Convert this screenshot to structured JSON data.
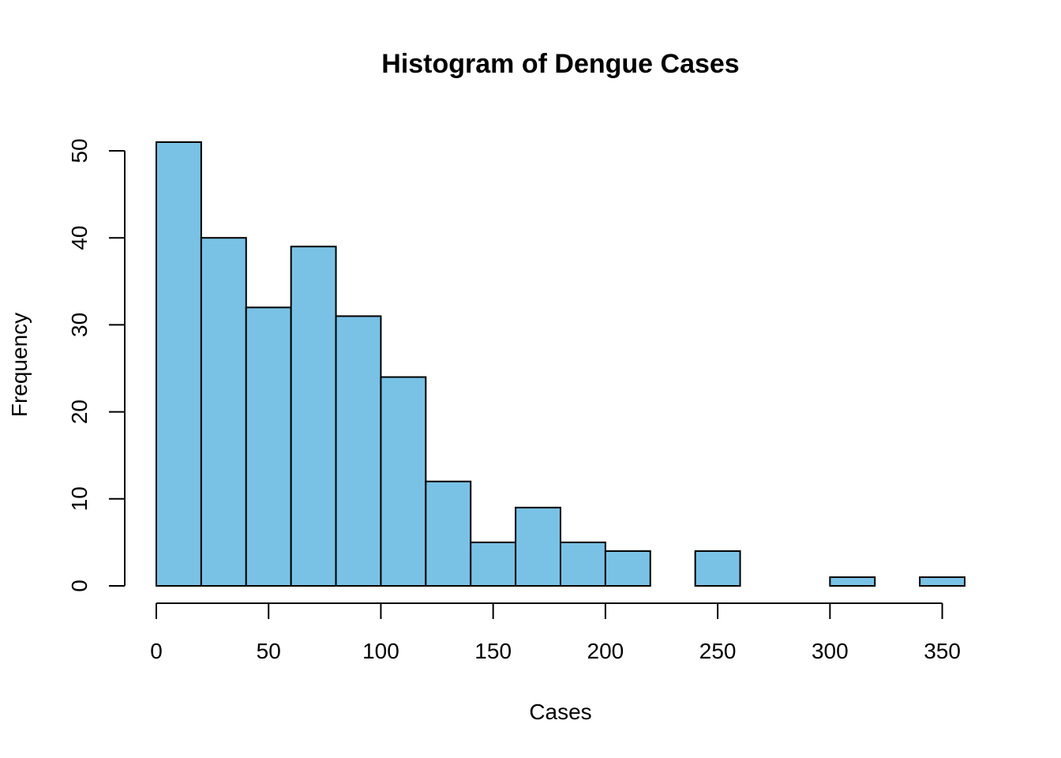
{
  "chart_data": {
    "type": "histogram",
    "title": "Histogram of Dengue Cases",
    "xlabel": "Cases",
    "ylabel": "Frequency",
    "bin_edges": [
      0,
      20,
      40,
      60,
      80,
      100,
      120,
      140,
      160,
      180,
      200,
      220,
      240,
      260,
      280,
      300,
      320,
      340,
      360
    ],
    "values": [
      51,
      40,
      32,
      39,
      31,
      24,
      12,
      5,
      9,
      5,
      4,
      0,
      4,
      0,
      0,
      1,
      0,
      1
    ],
    "x_ticks": [
      0,
      50,
      100,
      150,
      200,
      250,
      300,
      350
    ],
    "x_tick_labels": [
      "0",
      "50",
      "100",
      "150",
      "200",
      "250",
      "300",
      "350"
    ],
    "y_ticks": [
      0,
      10,
      20,
      30,
      40,
      50
    ],
    "y_tick_labels": [
      "0",
      "10",
      "20",
      "30",
      "40",
      "50"
    ],
    "xlim": [
      0,
      360
    ],
    "ylim": [
      0,
      51
    ],
    "grid": false,
    "legend": "none",
    "colors": {
      "bar_fill": "#79C2E6",
      "bar_stroke": "#000000",
      "axis": "#000000",
      "text": "#000000"
    }
  }
}
